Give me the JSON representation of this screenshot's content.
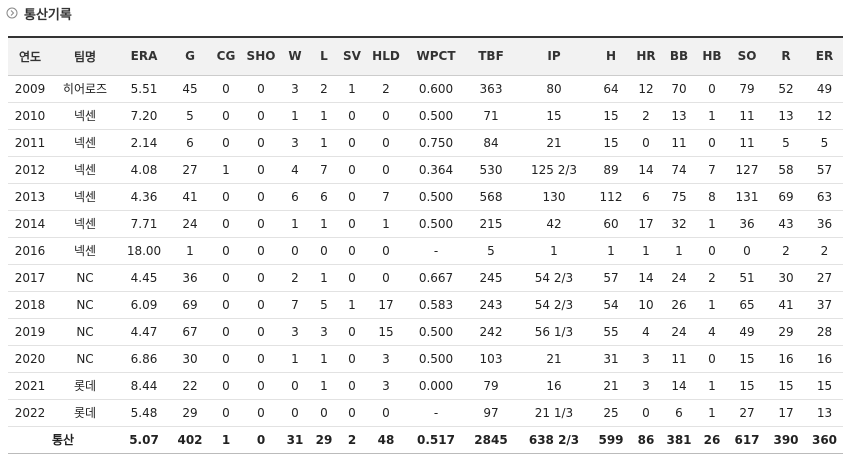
{
  "header": {
    "title": "통산기록"
  },
  "table": {
    "columns": [
      "연도",
      "팀명",
      "ERA",
      "G",
      "CG",
      "SHO",
      "W",
      "L",
      "SV",
      "HLD",
      "WPCT",
      "TBF",
      "IP",
      "H",
      "HR",
      "BB",
      "HB",
      "SO",
      "R",
      "ER"
    ],
    "rows": [
      [
        "2009",
        "히어로즈",
        "5.51",
        "45",
        "0",
        "0",
        "3",
        "2",
        "1",
        "2",
        "0.600",
        "363",
        "80",
        "64",
        "12",
        "70",
        "0",
        "79",
        "52",
        "49"
      ],
      [
        "2010",
        "넥센",
        "7.20",
        "5",
        "0",
        "0",
        "1",
        "1",
        "0",
        "0",
        "0.500",
        "71",
        "15",
        "15",
        "2",
        "13",
        "1",
        "11",
        "13",
        "12"
      ],
      [
        "2011",
        "넥센",
        "2.14",
        "6",
        "0",
        "0",
        "3",
        "1",
        "0",
        "0",
        "0.750",
        "84",
        "21",
        "15",
        "0",
        "11",
        "0",
        "11",
        "5",
        "5"
      ],
      [
        "2012",
        "넥센",
        "4.08",
        "27",
        "1",
        "0",
        "4",
        "7",
        "0",
        "0",
        "0.364",
        "530",
        "125 2/3",
        "89",
        "14",
        "74",
        "7",
        "127",
        "58",
        "57"
      ],
      [
        "2013",
        "넥센",
        "4.36",
        "41",
        "0",
        "0",
        "6",
        "6",
        "0",
        "7",
        "0.500",
        "568",
        "130",
        "112",
        "6",
        "75",
        "8",
        "131",
        "69",
        "63"
      ],
      [
        "2014",
        "넥센",
        "7.71",
        "24",
        "0",
        "0",
        "1",
        "1",
        "0",
        "1",
        "0.500",
        "215",
        "42",
        "60",
        "17",
        "32",
        "1",
        "36",
        "43",
        "36"
      ],
      [
        "2016",
        "넥센",
        "18.00",
        "1",
        "0",
        "0",
        "0",
        "0",
        "0",
        "0",
        "-",
        "5",
        "1",
        "1",
        "1",
        "1",
        "0",
        "0",
        "2",
        "2"
      ],
      [
        "2017",
        "NC",
        "4.45",
        "36",
        "0",
        "0",
        "2",
        "1",
        "0",
        "0",
        "0.667",
        "245",
        "54 2/3",
        "57",
        "14",
        "24",
        "2",
        "51",
        "30",
        "27"
      ],
      [
        "2018",
        "NC",
        "6.09",
        "69",
        "0",
        "0",
        "7",
        "5",
        "1",
        "17",
        "0.583",
        "243",
        "54 2/3",
        "54",
        "10",
        "26",
        "1",
        "65",
        "41",
        "37"
      ],
      [
        "2019",
        "NC",
        "4.47",
        "67",
        "0",
        "0",
        "3",
        "3",
        "0",
        "15",
        "0.500",
        "242",
        "56 1/3",
        "55",
        "4",
        "24",
        "4",
        "49",
        "29",
        "28"
      ],
      [
        "2020",
        "NC",
        "6.86",
        "30",
        "0",
        "0",
        "1",
        "1",
        "0",
        "3",
        "0.500",
        "103",
        "21",
        "31",
        "3",
        "11",
        "0",
        "15",
        "16",
        "16"
      ],
      [
        "2021",
        "롯데",
        "8.44",
        "22",
        "0",
        "0",
        "0",
        "1",
        "0",
        "3",
        "0.000",
        "79",
        "16",
        "21",
        "3",
        "14",
        "1",
        "15",
        "15",
        "15"
      ],
      [
        "2022",
        "롯데",
        "5.48",
        "29",
        "0",
        "0",
        "0",
        "0",
        "0",
        "0",
        "-",
        "97",
        "21 1/3",
        "25",
        "0",
        "6",
        "1",
        "27",
        "17",
        "13"
      ]
    ],
    "total": {
      "label": "통산",
      "cells": [
        "5.07",
        "402",
        "1",
        "0",
        "31",
        "29",
        "2",
        "48",
        "0.517",
        "2845",
        "638 2/3",
        "599",
        "86",
        "381",
        "26",
        "617",
        "390",
        "360"
      ]
    }
  }
}
